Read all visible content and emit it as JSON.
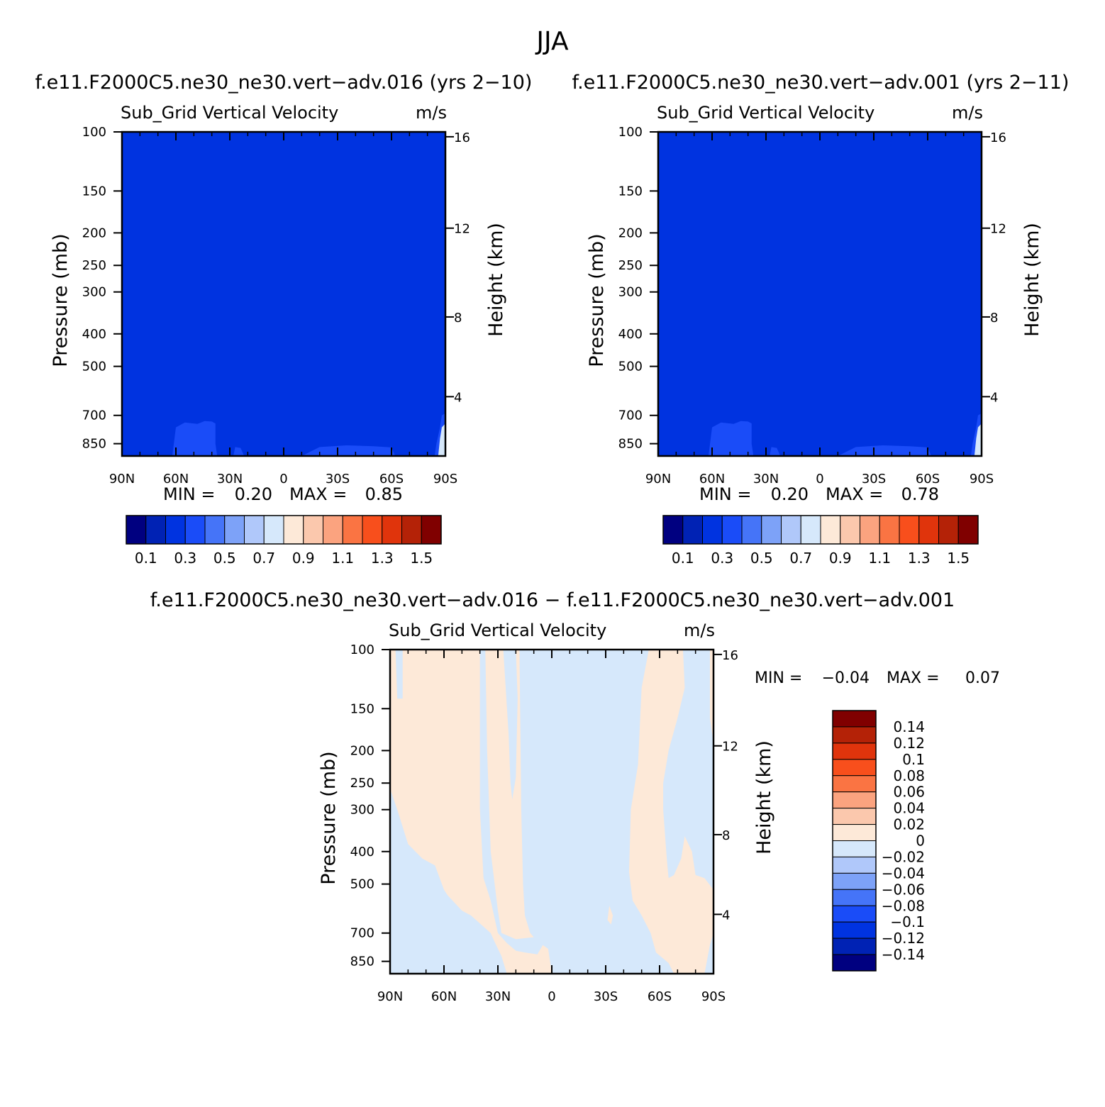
{
  "figure": {
    "season": "JJA",
    "variable": "Sub_Grid Vertical Velocity",
    "units": "m/s"
  },
  "chart_data": [
    {
      "type": "heatmap",
      "id": "case1",
      "title": "f.e11.F2000C5.ne30_ne30.vert-adv.016 (yrs 2-10)",
      "subtitle_left": "Sub_Grid Vertical Velocity",
      "subtitle_right": "m/s",
      "xlabel": "",
      "ylabel": "Pressure (mb)",
      "y2label": "Height (km)",
      "x_ticks": [
        "90N",
        "60N",
        "30N",
        "0",
        "30S",
        "60S",
        "90S"
      ],
      "y_ticks": [
        100,
        150,
        200,
        250,
        300,
        400,
        500,
        700,
        850
      ],
      "y2_ticks": [
        16,
        12,
        8,
        4
      ],
      "ylim": [
        100,
        925
      ],
      "min_label": "MIN =",
      "min": "0.20",
      "max_label": "MAX =",
      "max": "0.85",
      "background_value": "0.3-0.4",
      "features": [
        "weak 0.4-0.5 patches below ~700 mb near 60N-40N and 0-60S",
        "0.8-0.9 values near surface at 85S-90S"
      ],
      "colorbar": {
        "labels": [
          "0.1",
          "0.3",
          "0.5",
          "0.7",
          "0.9",
          "1.1",
          "1.3",
          "1.5"
        ],
        "levels": [
          0.1,
          0.2,
          0.3,
          0.4,
          0.5,
          0.6,
          0.7,
          0.8,
          0.9,
          1.0,
          1.1,
          1.2,
          1.3,
          1.4,
          1.5
        ],
        "colors": [
          "#000080",
          "#0022b4",
          "#0033e0",
          "#1a4cf8",
          "#4574f8",
          "#7da2f8",
          "#b0c8fa",
          "#d6e8fb",
          "#fde9d8",
          "#fbc8ad",
          "#fba37f",
          "#fa7443",
          "#f84f1c",
          "#e0340c",
          "#b42207",
          "#800000"
        ]
      }
    },
    {
      "type": "heatmap",
      "id": "case2",
      "title": "f.e11.F2000C5.ne30_ne30.vert-adv.001 (yrs 2-11)",
      "subtitle_left": "Sub_Grid Vertical Velocity",
      "subtitle_right": "m/s",
      "xlabel": "",
      "ylabel": "Pressure (mb)",
      "y2label": "Height (km)",
      "x_ticks": [
        "90N",
        "60N",
        "30N",
        "0",
        "30S",
        "60S",
        "90S"
      ],
      "y_ticks": [
        100,
        150,
        200,
        250,
        300,
        400,
        500,
        700,
        850
      ],
      "y2_ticks": [
        16,
        12,
        8,
        4
      ],
      "ylim": [
        100,
        925
      ],
      "min_label": "MIN =",
      "min": "0.20",
      "max_label": "MAX =",
      "max": "0.78",
      "background_value": "0.3-0.4",
      "features": [
        "weak 0.4-0.5 patches below ~700 mb near 60N-40N and 0-60S",
        "0.7-0.8 values near surface at 85S-90S"
      ],
      "colorbar": {
        "labels": [
          "0.1",
          "0.3",
          "0.5",
          "0.7",
          "0.9",
          "1.1",
          "1.3",
          "1.5"
        ],
        "levels": [
          0.1,
          0.2,
          0.3,
          0.4,
          0.5,
          0.6,
          0.7,
          0.8,
          0.9,
          1.0,
          1.1,
          1.2,
          1.3,
          1.4,
          1.5
        ],
        "colors": [
          "#000080",
          "#0022b4",
          "#0033e0",
          "#1a4cf8",
          "#4574f8",
          "#7da2f8",
          "#b0c8fa",
          "#d6e8fb",
          "#fde9d8",
          "#fbc8ad",
          "#fba37f",
          "#fa7443",
          "#f84f1c",
          "#e0340c",
          "#b42207",
          "#800000"
        ]
      }
    },
    {
      "type": "heatmap",
      "id": "diff",
      "title": "f.e11.F2000C5.ne30_ne30.vert-adv.016 - f.e11.F2000C5.ne30_ne30.vert-adv.001",
      "subtitle_left": "Sub_Grid Vertical Velocity",
      "subtitle_right": "m/s",
      "xlabel": "",
      "ylabel": "Pressure (mb)",
      "y2label": "Height (km)",
      "x_ticks": [
        "90N",
        "60N",
        "30N",
        "0",
        "30S",
        "60S",
        "90S"
      ],
      "y_ticks": [
        100,
        150,
        200,
        250,
        300,
        400,
        500,
        700,
        850
      ],
      "y2_ticks": [
        16,
        12,
        8,
        4
      ],
      "ylim": [
        100,
        925
      ],
      "min_label": "MIN =",
      "min": "-0.04",
      "max_label": "MAX =",
      "max": "0.07",
      "features": [
        "0 to 0.02 over 90N-65N aloft and 65S-80S aloft",
        "-0.02 to 0 over 35N-30S aloft and most lower levels"
      ],
      "colorbar": {
        "labels": [
          "0.14",
          "0.12",
          "0.1",
          "0.08",
          "0.06",
          "0.04",
          "0.02",
          "0",
          "-0.02",
          "-0.04",
          "-0.06",
          "-0.08",
          "-0.1",
          "-0.12",
          "-0.14"
        ],
        "colors": [
          "#800000",
          "#b42207",
          "#e0340c",
          "#f84f1c",
          "#fa7443",
          "#fba37f",
          "#fbc8ad",
          "#fde9d8",
          "#d6e8fb",
          "#b0c8fa",
          "#7da2f8",
          "#4574f8",
          "#1a4cf8",
          "#0033e0",
          "#0022b4",
          "#000080"
        ]
      }
    }
  ]
}
